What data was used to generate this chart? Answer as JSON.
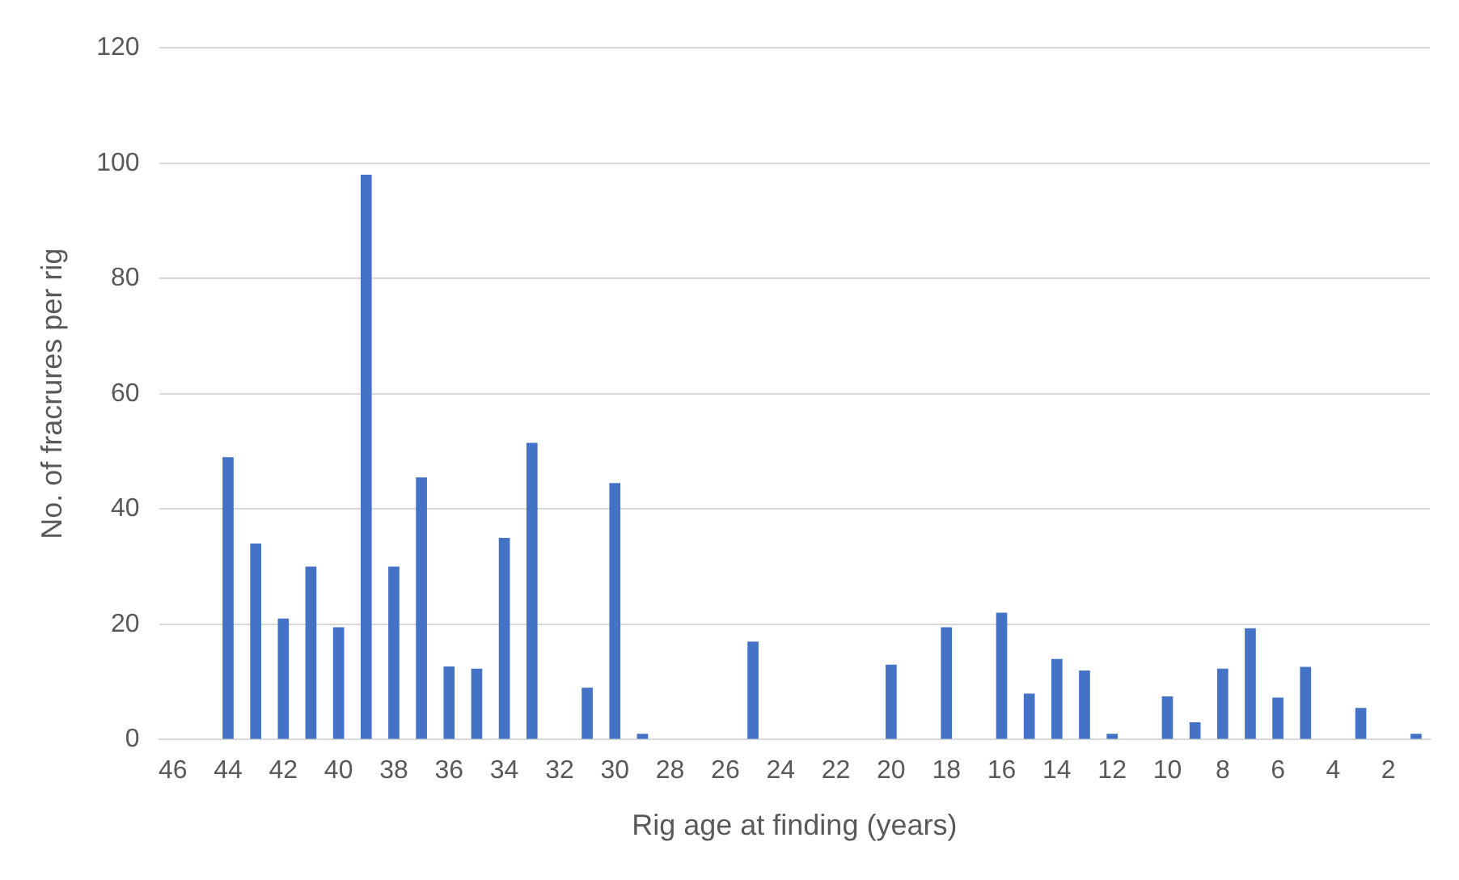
{
  "chart_data": {
    "type": "bar",
    "xlabel": "Rig age at finding (years)",
    "ylabel": "No. of fracrures per rig",
    "categories": [
      "46",
      null,
      "44",
      null,
      "42",
      null,
      "40",
      null,
      "38",
      null,
      "36",
      null,
      "34",
      null,
      "32",
      null,
      "30",
      null,
      "28",
      null,
      "26",
      null,
      "24",
      null,
      "22",
      null,
      "20",
      null,
      "18",
      null,
      "16",
      null,
      "14",
      null,
      "12",
      null,
      "10",
      null,
      "8",
      null,
      "6",
      null,
      "4",
      null,
      "2",
      null
    ],
    "values": [
      null,
      null,
      49,
      34,
      21,
      30,
      19.5,
      98,
      30,
      45.5,
      12.7,
      12.3,
      35,
      51.5,
      null,
      9,
      44.5,
      1,
      null,
      null,
      null,
      17,
      null,
      null,
      null,
      null,
      13,
      null,
      19.5,
      null,
      22,
      8,
      14,
      12,
      1,
      null,
      7.5,
      3,
      12.3,
      19.3,
      7.3,
      12.6,
      null,
      5.5,
      null,
      1
    ],
    "color": "#4472c4",
    "ylim": [
      0,
      120
    ],
    "yticks": [
      0,
      20,
      40,
      60,
      80,
      100,
      120
    ],
    "grid": "y",
    "legend": false
  }
}
